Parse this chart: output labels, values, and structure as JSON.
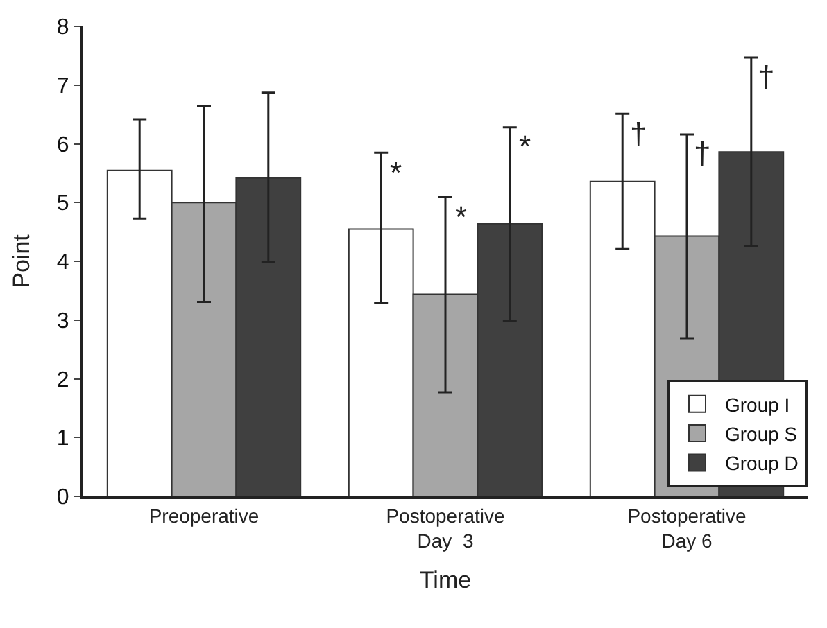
{
  "chart_data": {
    "type": "bar",
    "xlabel": "Time",
    "ylabel": "Point",
    "categories": [
      "Preoperative",
      "Postoperative\nDay  3",
      "Postoperative\nDay 6"
    ],
    "series": [
      {
        "name": "Group I",
        "color": "#ffffff",
        "values": [
          5.55,
          4.55,
          5.36
        ],
        "errors": [
          [
            4.73,
            6.42
          ],
          [
            3.29,
            5.85
          ],
          [
            4.21,
            6.51
          ]
        ]
      },
      {
        "name": "Group S",
        "color": "#a6a6a6",
        "values": [
          5.0,
          3.44,
          4.43
        ],
        "errors": [
          [
            3.31,
            6.64
          ],
          [
            1.77,
            5.09
          ],
          [
            2.69,
            6.16
          ]
        ]
      },
      {
        "name": "Group D",
        "color": "#404040",
        "values": [
          5.42,
          4.64,
          5.86
        ],
        "errors": [
          [
            3.99,
            6.87
          ],
          [
            2.99,
            6.28
          ],
          [
            4.26,
            7.47
          ]
        ]
      }
    ],
    "annotations": [
      "*",
      "*",
      "*",
      "†",
      "†",
      "†"
    ],
    "ylim": [
      0,
      8
    ],
    "yticks": [
      0,
      1,
      2,
      3,
      4,
      5,
      6,
      7,
      8
    ],
    "legend": "bottom right"
  }
}
